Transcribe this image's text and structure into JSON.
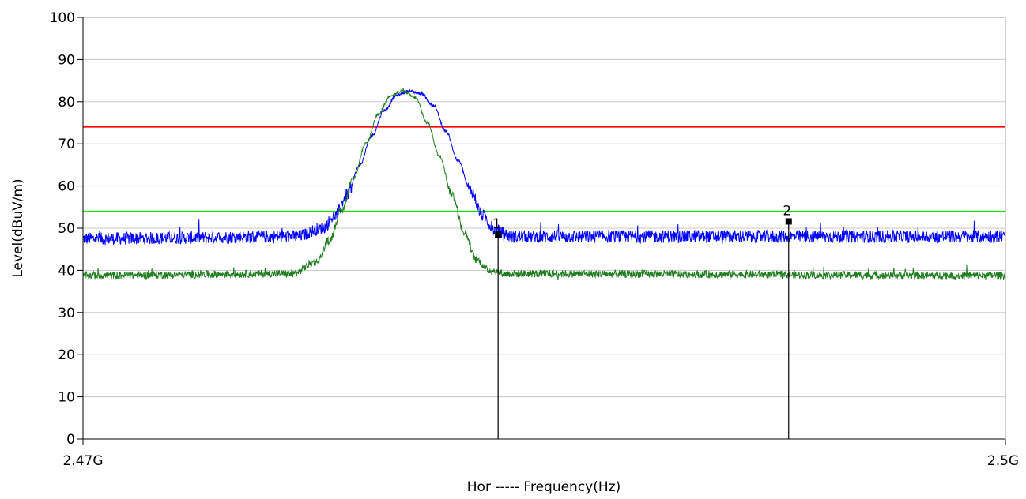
{
  "chart_data": {
    "type": "line",
    "xlabel": "Hor ----- Frequency(Hz)",
    "ylabel": "Level(dBuV/m)",
    "xlim": [
      2.47,
      2.5
    ],
    "ylim": [
      0,
      100
    ],
    "x_unit": "GHz",
    "x_tick_labels": [
      "2.47G",
      "2.5G"
    ],
    "y_ticks": [
      0,
      10,
      20,
      30,
      40,
      50,
      60,
      70,
      80,
      90,
      100
    ],
    "y_tick_labels": [
      "0",
      "10",
      "20",
      "30",
      "40",
      "50",
      "60",
      "70",
      "80",
      "90",
      "100"
    ],
    "grid": true,
    "legend": "none",
    "limit_lines": [
      {
        "color": "#ff0000",
        "value": 74
      },
      {
        "color": "#00e000",
        "value": 54
      }
    ],
    "series": [
      {
        "color": "#0000ff",
        "points": [
          [
            2.47,
            47.5
          ],
          [
            2.4769,
            48.0
          ],
          [
            2.4778,
            50.0
          ],
          [
            2.4782,
            53.0
          ],
          [
            2.4786,
            58.0
          ],
          [
            2.479,
            65.0
          ],
          [
            2.4794,
            72.0
          ],
          [
            2.4798,
            78.0
          ],
          [
            2.4802,
            81.5
          ],
          [
            2.4806,
            82.5
          ],
          [
            2.481,
            82.0
          ],
          [
            2.4814,
            79.0
          ],
          [
            2.4818,
            73.0
          ],
          [
            2.4822,
            66.0
          ],
          [
            2.4826,
            59.0
          ],
          [
            2.483,
            53.0
          ],
          [
            2.4834,
            49.5
          ],
          [
            2.484,
            48.0
          ],
          [
            2.5,
            48.0
          ]
        ]
      },
      {
        "color": "#1e7d1e",
        "points": [
          [
            2.47,
            38.8
          ],
          [
            2.4768,
            39.2
          ],
          [
            2.4776,
            42.0
          ],
          [
            2.478,
            47.0
          ],
          [
            2.4784,
            54.0
          ],
          [
            2.4788,
            62.0
          ],
          [
            2.4792,
            70.0
          ],
          [
            2.4796,
            77.0
          ],
          [
            2.48,
            81.5
          ],
          [
            2.4804,
            82.5
          ],
          [
            2.4808,
            81.0
          ],
          [
            2.4812,
            75.0
          ],
          [
            2.4816,
            67.0
          ],
          [
            2.482,
            58.0
          ],
          [
            2.4824,
            49.0
          ],
          [
            2.4828,
            42.5
          ],
          [
            2.4832,
            40.0
          ],
          [
            2.4838,
            39.2
          ],
          [
            2.5,
            38.8
          ]
        ]
      }
    ],
    "markers": [
      {
        "label": "1",
        "x": 2.4835,
        "y": 48.5
      },
      {
        "label": "2",
        "x": 2.49295,
        "y": 51.6
      }
    ]
  }
}
